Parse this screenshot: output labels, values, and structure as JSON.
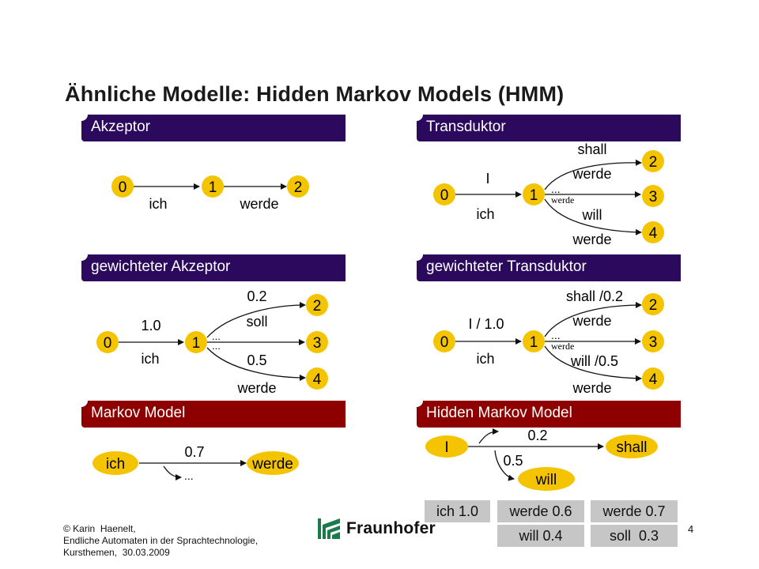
{
  "title": "Ähnliche Modelle: Hidden Markov Models (HMM)",
  "sections": {
    "akzeptor": "Akzeptor",
    "transduktor": "Transduktor",
    "gew_akzeptor": "gewichteter Akzeptor",
    "gew_transduktor": "gewichteter Transduktor",
    "markov": "Markov Model",
    "hmm": "Hidden Markov Model"
  },
  "akzeptor": {
    "states": [
      "0",
      "1",
      "2"
    ],
    "edges": [
      "ich",
      "werde"
    ]
  },
  "transduktor": {
    "states": [
      "0",
      "1",
      "2",
      "3",
      "4"
    ],
    "top_in": "I",
    "top_out": "ich",
    "upper_in": "shall",
    "upper_out": "werde",
    "mid_dots": "...",
    "mid_out": "werde",
    "lower_in": "will",
    "lower_out": "werde"
  },
  "gew_akzeptor": {
    "states": [
      "0",
      "1",
      "2",
      "3",
      "4"
    ],
    "w1": "1.0",
    "l1": "ich",
    "w_upper": "0.2",
    "l_upper": "soll",
    "dots1": "...",
    "dots2": "...",
    "w_lower": "0.5",
    "l_lower": "werde"
  },
  "gew_transduktor": {
    "states": [
      "0",
      "1",
      "2",
      "3",
      "4"
    ],
    "top_in": "I / 1.0",
    "top_out": "ich",
    "upper_in": "shall /0.2",
    "upper_out": "werde",
    "mid_dots": "...",
    "mid_out": "werde",
    "lower_in": "will /0.5",
    "lower_out": "werde"
  },
  "markov": {
    "from": "ich",
    "to": "werde",
    "weight": "0.7",
    "dots": "..."
  },
  "hmm": {
    "start": "I",
    "shall": "shall",
    "will": "will",
    "w_shall": "0.2",
    "w_will": "0.5",
    "emissions": {
      "i": "ich 1.0",
      "will_1": "werde 0.6",
      "will_2": "will 0.4",
      "shall_1": "werde 0.7",
      "shall_2": "soll  0.3"
    }
  },
  "footer": {
    "line1": "© Karin  Haenelt,",
    "line2": "Endliche Automaten in der Sprachtechnologie,",
    "line3": "Kursthemen,  30.03.2009"
  },
  "logo": "Fraunhofer",
  "page": "4",
  "colors": {
    "node_fill": "#f5c400",
    "purple": "#2b0a5e",
    "red": "#8e0000",
    "box": "#c6c6c6",
    "logo_green": "#1a7a4a"
  }
}
